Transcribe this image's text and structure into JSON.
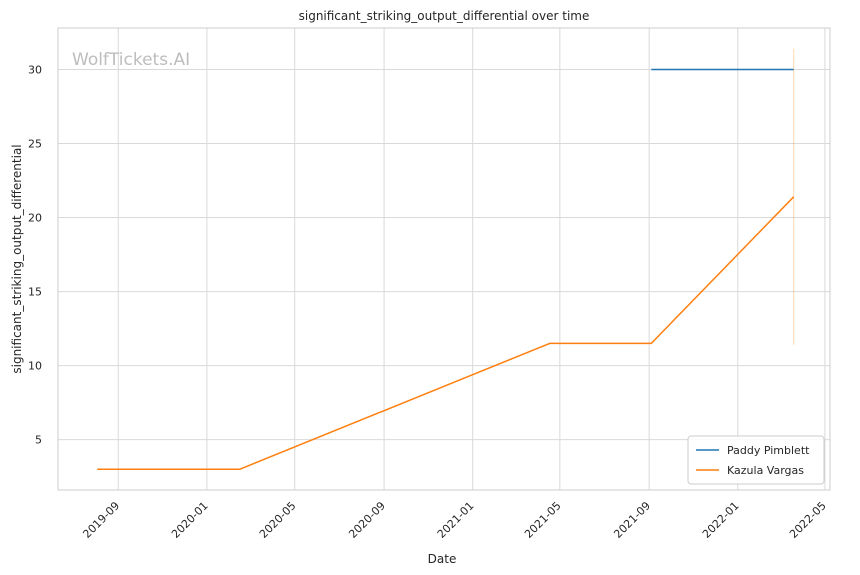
{
  "watermark": "WolfTickets.AI",
  "chart_data": {
    "type": "line",
    "title": "significant_striking_output_differential over time",
    "xlabel": "Date",
    "ylabel": "significant_striking_output_differential",
    "x_axis_type": "date",
    "xlim": [
      "2019-06-10",
      "2022-05-08"
    ],
    "ylim": [
      1.6,
      32.8
    ],
    "x_ticks": [
      "2019-09",
      "2020-01",
      "2020-05",
      "2020-09",
      "2021-01",
      "2021-05",
      "2021-09",
      "2022-01",
      "2022-05"
    ],
    "y_ticks": [
      5,
      10,
      15,
      20,
      25,
      30
    ],
    "grid": true,
    "legend_position": "bottom-right",
    "series": [
      {
        "name": "Paddy Pimblett",
        "color": "#1f77b4",
        "points": [
          {
            "x": "2021-09-04",
            "y": 30.0
          },
          {
            "x": "2022-03-19",
            "y": 30.0
          }
        ]
      },
      {
        "name": "Kazula Vargas",
        "color": "#ff7f0e",
        "points": [
          {
            "x": "2019-08-03",
            "y": 3.0
          },
          {
            "x": "2020-02-15",
            "y": 3.0
          },
          {
            "x": "2021-04-17",
            "y": 11.5
          },
          {
            "x": "2021-09-04",
            "y": 11.5
          },
          {
            "x": "2022-03-19",
            "y": 21.4
          }
        ]
      }
    ],
    "annotations": [
      {
        "type": "error_bar",
        "series": "Kazula Vargas",
        "x": "2022-03-19",
        "y_low": 11.4,
        "y_high": 31.4
      }
    ]
  }
}
